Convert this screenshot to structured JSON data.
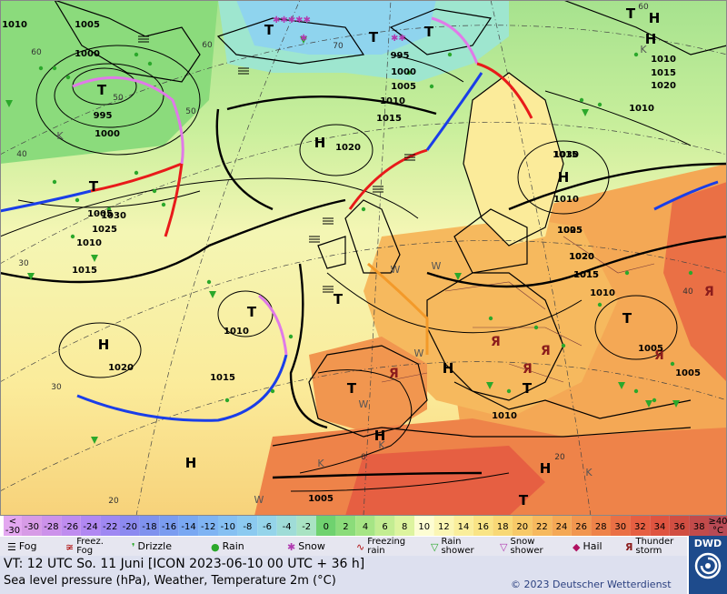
{
  "colorbar": {
    "first_label_top": "<",
    "first_label_bottom": "-30",
    "last_label_top": "≥40",
    "last_label_bottom": "°C",
    "steps": [
      {
        "label": "-30",
        "color": "#d79be6"
      },
      {
        "label": "-28",
        "color": "#cc92ea"
      },
      {
        "label": "-26",
        "color": "#bf8cef"
      },
      {
        "label": "-24",
        "color": "#b188f2"
      },
      {
        "label": "-22",
        "color": "#9f88f2"
      },
      {
        "label": "-20",
        "color": "#8c8af0"
      },
      {
        "label": "-18",
        "color": "#7f92ee"
      },
      {
        "label": "-16",
        "color": "#7a9cf0"
      },
      {
        "label": "-14",
        "color": "#79a8f2"
      },
      {
        "label": "-12",
        "color": "#7fb4f3"
      },
      {
        "label": "-10",
        "color": "#86c0f2"
      },
      {
        "label": "-8",
        "color": "#8ccaf0"
      },
      {
        "label": "-6",
        "color": "#95d4ea"
      },
      {
        "label": "-4",
        "color": "#9fdcd7"
      },
      {
        "label": "-2",
        "color": "#a9e3c3"
      },
      {
        "label": "0",
        "color": "#6fd26f"
      },
      {
        "label": "2",
        "color": "#8bdc7a"
      },
      {
        "label": "4",
        "color": "#a6e585"
      },
      {
        "label": "6",
        "color": "#c3ed92"
      },
      {
        "label": "8",
        "color": "#ddf49f"
      },
      {
        "label": "10",
        "color": "#fdfdd3"
      },
      {
        "label": "12",
        "color": "#fbf6b5"
      },
      {
        "label": "14",
        "color": "#faee9c"
      },
      {
        "label": "16",
        "color": "#f9e486"
      },
      {
        "label": "18",
        "color": "#f8d876"
      },
      {
        "label": "20",
        "color": "#f7c968"
      },
      {
        "label": "22",
        "color": "#f6b95e"
      },
      {
        "label": "24",
        "color": "#f4a855"
      },
      {
        "label": "26",
        "color": "#f1964f"
      },
      {
        "label": "28",
        "color": "#ee8349"
      },
      {
        "label": "30",
        "color": "#ea7045"
      },
      {
        "label": "32",
        "color": "#e65f42"
      },
      {
        "label": "34",
        "color": "#df5440"
      },
      {
        "label": "36",
        "color": "#d14e42"
      },
      {
        "label": "38",
        "color": "#c24b4b"
      }
    ]
  },
  "legend": {
    "fog": "Fog",
    "freezing_fog": "Freez.\nFog",
    "drizzle": "Drizzle",
    "rain": "Rain",
    "snow": "Snow",
    "freezing_rain": "Freezing\nrain",
    "rain_shower": "Rain\nshower",
    "snow_shower": "Snow\nshower",
    "hail": "Hail",
    "thunderstorm": "Thunder\nstorm"
  },
  "footer": {
    "valid_time": "VT: 12 UTC So.   11 Juni [ICON 2023-06-10   00 UTC + 36 h]",
    "subtitle": "Sea level pressure (hPa), Weather, Temperature 2m (°C)",
    "copyright": "© 2023 Deutscher Wetterdienst"
  },
  "brand": {
    "name": "DWD",
    "color": "#1e4b8c"
  },
  "map": {
    "pressure_labels": [
      "1010",
      "1005",
      "1000",
      "995",
      "1000",
      "1005",
      "1010",
      "1015",
      "1020",
      "1025",
      "1030",
      "1020",
      "1015",
      "1010",
      "1005",
      "995",
      "1000",
      "1005",
      "1010",
      "1015",
      "1020",
      "1010",
      "1015",
      "1010",
      "1020",
      "1015",
      "1015",
      "1010",
      "1010",
      "1005",
      "1005",
      "1030",
      "1025",
      "1020",
      "1015",
      "1010",
      "1005"
    ],
    "centers": [
      "T",
      "T",
      "H",
      "T",
      "T",
      "H",
      "T",
      "H",
      "T",
      "H",
      "H",
      "T",
      "T",
      "T",
      "H",
      "H",
      "T",
      "H",
      "T",
      "H",
      "T"
    ],
    "grid_labels": [
      "60",
      "50",
      "40",
      "30",
      "20",
      "50",
      "70",
      "60",
      "40",
      "20",
      "0",
      "30",
      "60"
    ],
    "weather_letters": [
      "K",
      "K",
      "K",
      "W",
      "W",
      "W",
      "W",
      "W",
      "K",
      "K"
    ]
  }
}
